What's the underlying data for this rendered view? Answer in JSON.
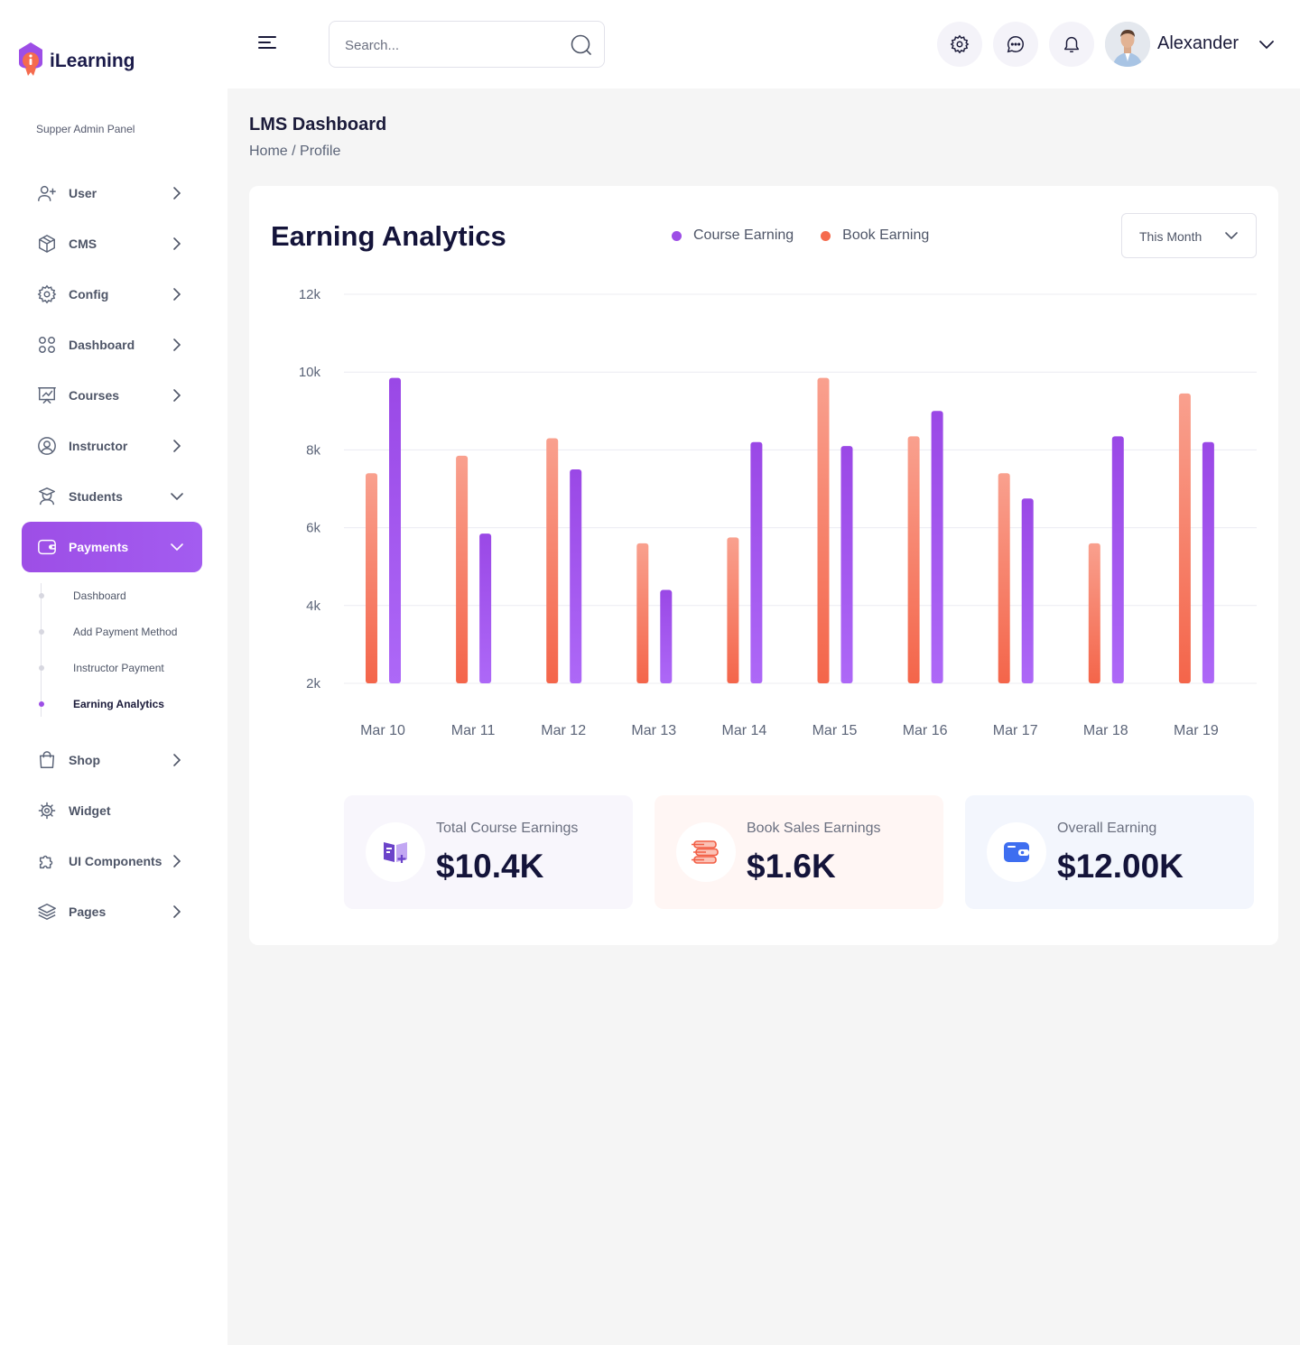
{
  "app": {
    "brand": "iLearning",
    "panel_label": "Supper Admin Panel"
  },
  "sidebar": {
    "items": [
      {
        "label": "User",
        "icon": "user-plus-icon",
        "expanded": false
      },
      {
        "label": "CMS",
        "icon": "cube-icon",
        "expanded": false
      },
      {
        "label": "Config",
        "icon": "gear-icon",
        "expanded": false
      },
      {
        "label": "Dashboard",
        "icon": "grid-icon",
        "expanded": false
      },
      {
        "label": "Courses",
        "icon": "presentation-chart-icon",
        "expanded": false
      },
      {
        "label": "Instructor",
        "icon": "user-circle-icon",
        "expanded": false
      },
      {
        "label": "Students",
        "icon": "graduate-icon",
        "expanded": true
      },
      {
        "label": "Payments",
        "icon": "wallet-icon",
        "expanded": true,
        "active": true
      }
    ],
    "payments_sub": [
      {
        "label": "Dashboard"
      },
      {
        "label": "Add Payment Method"
      },
      {
        "label": "Instructor Payment"
      },
      {
        "label": "Earning Analytics",
        "active": true
      }
    ],
    "items_after": [
      {
        "label": "Shop",
        "icon": "bag-icon"
      },
      {
        "label": "Widget",
        "icon": "widget-gear-icon"
      },
      {
        "label": "UI Components",
        "icon": "puzzle-icon"
      },
      {
        "label": "Pages",
        "icon": "layers-icon"
      }
    ]
  },
  "header": {
    "search_placeholder": "Search...",
    "username": "Alexander"
  },
  "page": {
    "title": "LMS Dashboard",
    "breadcrumb_home": "Home",
    "breadcrumb_sep": " / ",
    "breadcrumb_current": "Profile"
  },
  "card": {
    "title": "Earning Analytics",
    "period": "This Month"
  },
  "chart_data": {
    "type": "bar",
    "categories": [
      "Mar 10",
      "Mar 11",
      "Mar 12",
      "Mar 13",
      "Mar 14",
      "Mar 15",
      "Mar 16",
      "Mar 17",
      "Mar 18",
      "Mar 19"
    ],
    "series": [
      {
        "name": "Book Earning",
        "color": "#f56b4e",
        "values": [
          7400,
          7850,
          8300,
          5600,
          5750,
          9850,
          8350,
          7400,
          5600,
          9450
        ]
      },
      {
        "name": "Course Earning",
        "color": "#9d4ee6",
        "values": [
          9850,
          5850,
          7500,
          4400,
          8200,
          8100,
          9000,
          6750,
          8350,
          8200
        ]
      }
    ],
    "yticks": [
      "12k",
      "10k",
      "8k",
      "6k",
      "4k",
      "2k"
    ],
    "ylim": [
      2000,
      12000
    ],
    "grid": true,
    "legend_position": "top"
  },
  "stats": [
    {
      "label": "Total Course Earnings",
      "value": "$10.4K",
      "icon": "book-plus-icon",
      "bg": "#f8f6fc"
    },
    {
      "label": "Book Sales Earnings",
      "value": "$1.6K",
      "icon": "books-stack-icon",
      "bg": "#fff6f4"
    },
    {
      "label": "Overall Earning",
      "value": "$12.00K",
      "icon": "wallet-blue-icon",
      "bg": "#f3f6fd"
    }
  ]
}
